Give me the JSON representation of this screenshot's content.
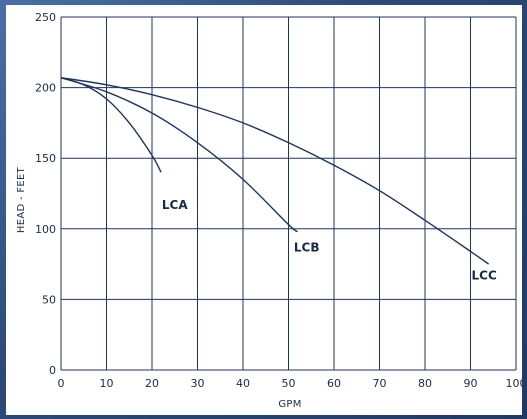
{
  "chart_data": {
    "type": "line",
    "title": "",
    "xlabel": "GPM",
    "ylabel": "HEAD - FEET",
    "xlim": [
      0,
      100
    ],
    "ylim": [
      0,
      250
    ],
    "x_ticks": [
      0,
      10,
      20,
      30,
      40,
      50,
      60,
      70,
      80,
      90,
      100
    ],
    "y_ticks": [
      0,
      50,
      100,
      150,
      200,
      250
    ],
    "grid": true,
    "series": [
      {
        "name": "LCA",
        "color": "#1e3560",
        "x": [
          0,
          5,
          10,
          15,
          20,
          22
        ],
        "y": [
          207,
          202,
          192,
          175,
          152,
          140
        ]
      },
      {
        "name": "LCB",
        "color": "#1e3560",
        "x": [
          0,
          10,
          20,
          30,
          40,
          50,
          52
        ],
        "y": [
          207,
          197,
          182,
          161,
          135,
          103,
          98
        ]
      },
      {
        "name": "LCC",
        "color": "#1e3560",
        "x": [
          0,
          10,
          20,
          30,
          40,
          50,
          60,
          70,
          80,
          90,
          94
        ],
        "y": [
          207,
          202,
          195,
          186,
          175,
          161,
          145,
          127,
          106,
          84,
          75
        ]
      }
    ],
    "series_labels": [
      {
        "text": "LCA",
        "x": 25,
        "y": 114
      },
      {
        "text": "LCB",
        "x": 54,
        "y": 84
      },
      {
        "text": "LCC",
        "x": 93,
        "y": 64
      }
    ]
  }
}
